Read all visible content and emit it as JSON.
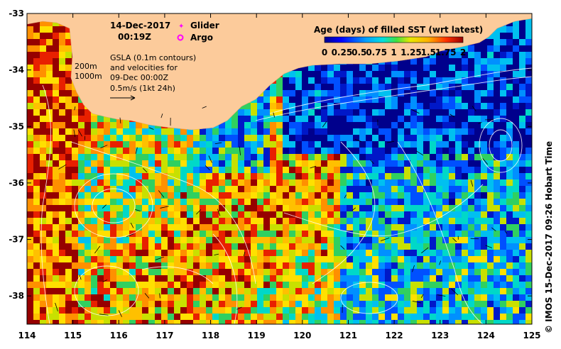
{
  "date": "14-Dec-2017",
  "time": "00:19Z",
  "legend": {
    "glider": "Glider",
    "argo": "Argo",
    "glider_color": "#ff00ff",
    "argo_color": "#ff00ff"
  },
  "gsla_note": {
    "line1": "GSLA (0.1m contours)",
    "line2": "and velocities for",
    "line3": "09-Dec 00:00Z",
    "line4": "0.5m/s (1kt 24h)"
  },
  "depth_labels": {
    "d200": "200m",
    "d1000": "1000m"
  },
  "colorbar": {
    "title": "Age (days) of filled SST (wrt latest)",
    "ticks": [
      "0",
      "0.25",
      "0.5",
      "0.75",
      "1",
      "1.25",
      "1.5",
      "1.75",
      "2"
    ],
    "range": [
      0,
      2
    ]
  },
  "axes": {
    "lon_ticks": [
      "114",
      "115",
      "116",
      "117",
      "118",
      "119",
      "120",
      "121",
      "122",
      "123",
      "124",
      "125"
    ],
    "lat_ticks": [
      "-33",
      "-34",
      "-35",
      "-36",
      "-37",
      "-38"
    ],
    "lon_range": [
      114,
      125
    ],
    "lat_range": [
      -38.5,
      -33
    ]
  },
  "credit": "© IMOS 15-Dec-2017 09:26 Hobart Time",
  "colors": {
    "land": "#fccb9b",
    "age_0": "#00008c",
    "age_2": "#960000"
  }
}
